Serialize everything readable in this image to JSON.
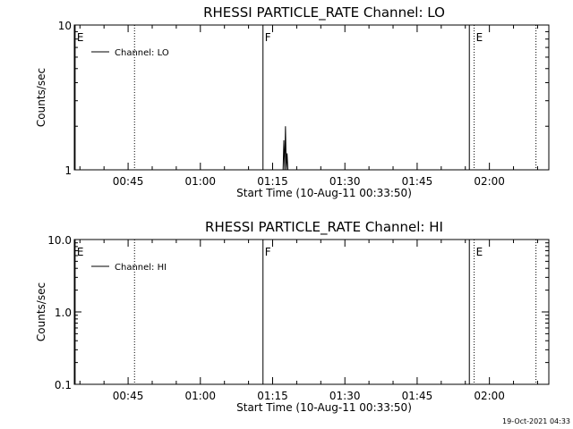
{
  "chart_data": [
    {
      "type": "line",
      "title": "RHESSI PARTICLE_RATE Channel: LO",
      "xlabel": "Start Time (10-Aug-11 00:33:50)",
      "ylabel": "Counts/sec",
      "yscale": "log",
      "ylim": [
        1,
        10
      ],
      "xlim": [
        "00:33:50",
        "02:12:20"
      ],
      "ytick_labels": [
        "1",
        "10"
      ],
      "xtick_labels": [
        "00:45",
        "01:00",
        "01:15",
        "01:30",
        "01:45",
        "02:00"
      ],
      "legend": {
        "entries": [
          "Channel: LO"
        ],
        "placement": "top-left"
      },
      "series": [
        {
          "name": "Channel: LO",
          "x": [
            "00:33:50",
            "01:17:10",
            "01:17:20",
            "01:17:30",
            "01:17:40",
            "01:17:50",
            "01:18:00",
            "01:18:10",
            "02:12:20"
          ],
          "y": [
            1,
            1,
            1.6,
            1,
            2,
            1,
            1.3,
            1,
            1
          ]
        }
      ],
      "markers": [
        {
          "time": "00:34:00",
          "label": "E",
          "style": "solid"
        },
        {
          "time": "00:46:20",
          "label": "",
          "style": "dotted"
        },
        {
          "time": "01:13:00",
          "label": "F",
          "style": "solid"
        },
        {
          "time": "01:55:50",
          "label": "",
          "style": "solid"
        },
        {
          "time": "01:56:50",
          "label": "E",
          "style": "dotted"
        },
        {
          "time": "02:09:40",
          "label": "",
          "style": "dotted"
        }
      ]
    },
    {
      "type": "line",
      "title": "RHESSI PARTICLE_RATE Channel: HI",
      "xlabel": "Start Time (10-Aug-11 00:33:50)",
      "ylabel": "Counts/sec",
      "yscale": "log",
      "ylim": [
        0.1,
        10
      ],
      "xlim": [
        "00:33:50",
        "02:12:20"
      ],
      "ytick_labels": [
        "0.1",
        "1.0",
        "10.0"
      ],
      "xtick_labels": [
        "00:45",
        "01:00",
        "01:15",
        "01:30",
        "01:45",
        "02:00"
      ],
      "legend": {
        "entries": [
          "Channel: HI"
        ],
        "placement": "top-left"
      },
      "series": [
        {
          "name": "Channel: HI",
          "x": [],
          "y": []
        }
      ],
      "markers": [
        {
          "time": "00:34:00",
          "label": "E",
          "style": "solid"
        },
        {
          "time": "00:46:20",
          "label": "",
          "style": "dotted"
        },
        {
          "time": "01:13:00",
          "label": "F",
          "style": "solid"
        },
        {
          "time": "01:55:50",
          "label": "",
          "style": "solid"
        },
        {
          "time": "01:56:50",
          "label": "E",
          "style": "dotted"
        },
        {
          "time": "02:09:40",
          "label": "",
          "style": "dotted"
        }
      ]
    }
  ],
  "footer": {
    "timestamp": "19-Oct-2021 04:33"
  }
}
